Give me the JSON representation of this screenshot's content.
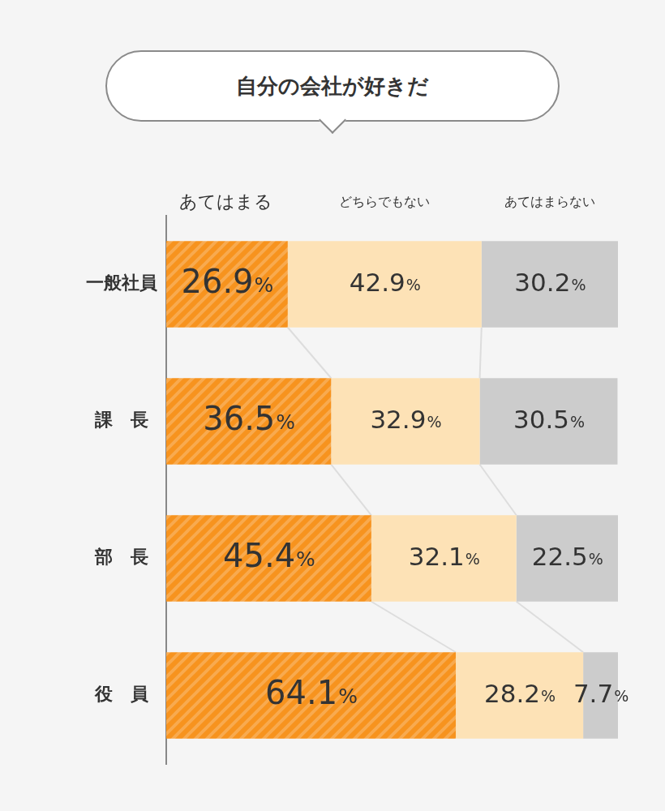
{
  "chart_data": {
    "type": "bar",
    "title": "自分の会社が好きだ",
    "orientation": "horizontal",
    "stacked": true,
    "data_labels": true,
    "tick_labels": "y",
    "grid": false,
    "legend": "top",
    "categories": [
      "一般社員",
      "課　長",
      "部　長",
      "役　員"
    ],
    "xlim": [
      0,
      100
    ],
    "series": [
      {
        "name": "あてはまる",
        "color": "#f7931e",
        "values": [
          26.9,
          36.5,
          45.4,
          64.1
        ],
        "value_labels": [
          "26.9%",
          "36.5%",
          "45.4%",
          "64.1%"
        ]
      },
      {
        "name": "どちらでもない",
        "color": "#fde2b6",
        "values": [
          42.9,
          32.9,
          32.1,
          28.2
        ],
        "value_labels": [
          "42.9%",
          "32.9%",
          "32.1%",
          "28.2%"
        ]
      },
      {
        "name": "あてはまらない",
        "color": "#cccccc",
        "values": [
          30.2,
          30.5,
          22.5,
          7.7
        ],
        "value_labels": [
          "30.2%",
          "30.5%",
          "22.5%",
          "7.7%"
        ]
      }
    ]
  }
}
